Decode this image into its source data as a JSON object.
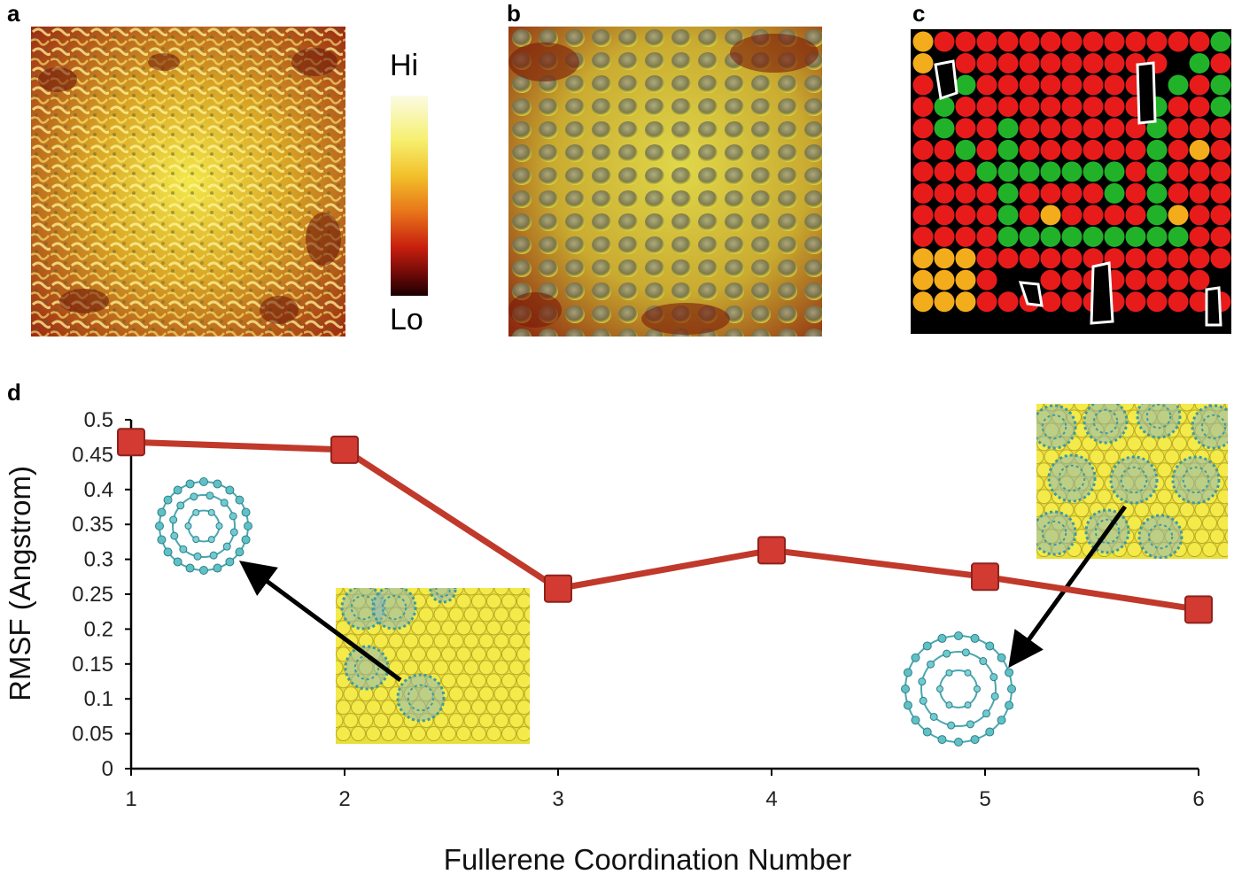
{
  "panels": {
    "a": "a",
    "b": "b",
    "c": "c",
    "d": "d"
  },
  "colorbar": {
    "hi": "Hi",
    "lo": "Lo"
  },
  "lattice_colors": {
    "red": "#e81b1b",
    "green": "#22b22a",
    "orange": "#f3ac1c",
    "background": "#000000"
  },
  "chart_data": {
    "type": "line",
    "x": [
      1,
      2,
      3,
      4,
      5,
      6
    ],
    "series": [
      {
        "values": [
          0.468,
          0.457,
          0.258,
          0.313,
          0.275,
          0.228
        ]
      }
    ],
    "xlabel": "Fullerene Coordination Number",
    "ylabel": "RMSF (Angstrom)",
    "xlim": [
      1,
      6
    ],
    "ylim": [
      0,
      0.5
    ],
    "x_ticks": [
      "1",
      "2",
      "3",
      "4",
      "5",
      "6"
    ],
    "y_ticks": [
      "0",
      "0.05",
      "0.1",
      "0.15",
      "0.2",
      "0.25",
      "0.3",
      "0.35",
      "0.4",
      "0.45",
      "0.5"
    ],
    "grid": false,
    "line_color": "#c0392b",
    "marker_color": "#d23a32"
  }
}
